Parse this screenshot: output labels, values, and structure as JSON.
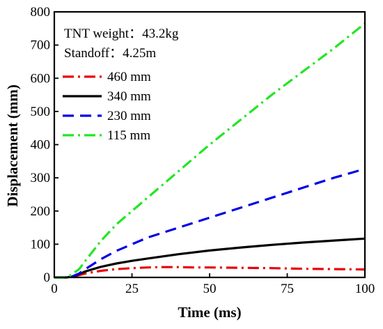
{
  "chart_data": {
    "type": "line",
    "xlabel": "Time (ms)",
    "ylabel": "Displacement (mm)",
    "xlim": [
      0,
      100
    ],
    "ylim": [
      0,
      800
    ],
    "x_ticks": [
      0,
      25,
      50,
      75,
      100
    ],
    "y_ticks": [
      0,
      100,
      200,
      300,
      400,
      500,
      600,
      700,
      800
    ],
    "grid": false,
    "legend_position": "top-left",
    "annotations": [
      {
        "label": "TNT weight：",
        "value": "43.2kg"
      },
      {
        "label": "Standoff：",
        "value": "4.25m"
      }
    ],
    "series": [
      {
        "name": "460 mm",
        "color": "#e8000b",
        "dash": "dashdot",
        "x": [
          0,
          4,
          6,
          8,
          10,
          15,
          20,
          25,
          30,
          35,
          40,
          45,
          50,
          60,
          70,
          80,
          90,
          100
        ],
        "y": [
          0,
          0,
          2,
          7,
          12,
          20,
          25,
          28,
          30,
          31,
          31,
          30,
          30,
          29,
          28,
          26,
          25,
          24
        ]
      },
      {
        "name": "340 mm",
        "color": "#000000",
        "dash": "solid",
        "x": [
          0,
          4,
          6,
          8,
          10,
          15,
          20,
          25,
          30,
          40,
          50,
          60,
          70,
          80,
          90,
          100
        ],
        "y": [
          0,
          0,
          3,
          10,
          18,
          32,
          42,
          50,
          57,
          70,
          81,
          90,
          98,
          105,
          111,
          117
        ]
      },
      {
        "name": "230 mm",
        "color": "#0000e6",
        "dash": "dash",
        "x": [
          0,
          5,
          8,
          10,
          15,
          20,
          25,
          30,
          40,
          50,
          60,
          70,
          80,
          90,
          100
        ],
        "y": [
          0,
          0,
          12,
          25,
          55,
          80,
          100,
          120,
          150,
          180,
          210,
          240,
          270,
          300,
          327
        ]
      },
      {
        "name": "115 mm",
        "color": "#22e622",
        "dash": "dashdot",
        "x": [
          0,
          3,
          5,
          8,
          10,
          15,
          20,
          25,
          30,
          40,
          50,
          60,
          70,
          80,
          90,
          100
        ],
        "y": [
          0,
          0,
          5,
          25,
          50,
          110,
          160,
          200,
          240,
          320,
          400,
          475,
          550,
          620,
          690,
          765
        ]
      }
    ]
  }
}
